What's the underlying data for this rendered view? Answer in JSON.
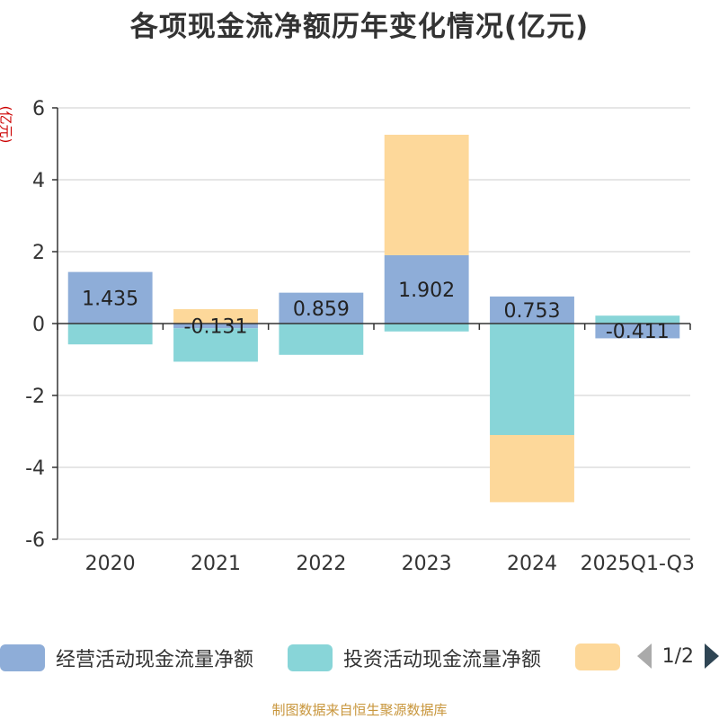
{
  "title": "各项现金流净额历年变化情况(亿元)",
  "unit_label": "(亿元)",
  "source": "制图数据来自恒生聚源数据库",
  "legend": {
    "items": [
      {
        "label": "经营活动现金流量净额",
        "color": "#8eadd8"
      },
      {
        "label": "投资活动现金流量净额",
        "color": "#88d5d8"
      },
      {
        "label": "",
        "color": "#fdd89a"
      }
    ],
    "page": "1/2"
  },
  "chart_data": {
    "type": "bar",
    "stacked": true,
    "categories": [
      "2020",
      "2021",
      "2022",
      "2023",
      "2024",
      "2025Q1-Q3"
    ],
    "ylim": [
      -6,
      6
    ],
    "yticks": [
      6,
      4,
      2,
      0,
      -2,
      -4,
      -6
    ],
    "series": [
      {
        "name": "经营活动现金流量净额",
        "color": "#8eadd8",
        "values": [
          1.435,
          -0.131,
          0.859,
          1.902,
          0.753,
          -0.411
        ]
      },
      {
        "name": "投资活动现金流量净额",
        "color": "#88d5d8",
        "values": [
          -0.58,
          -0.93,
          -0.87,
          -0.22,
          -3.1,
          0.22
        ]
      },
      {
        "name": "",
        "color": "#fdd89a",
        "values": [
          0.0,
          0.4,
          0.0,
          3.35,
          -1.87,
          0.0
        ]
      }
    ],
    "data_labels": [
      "1.435",
      "-0.131",
      "0.859",
      "1.902",
      "0.753",
      "-0.411"
    ]
  }
}
